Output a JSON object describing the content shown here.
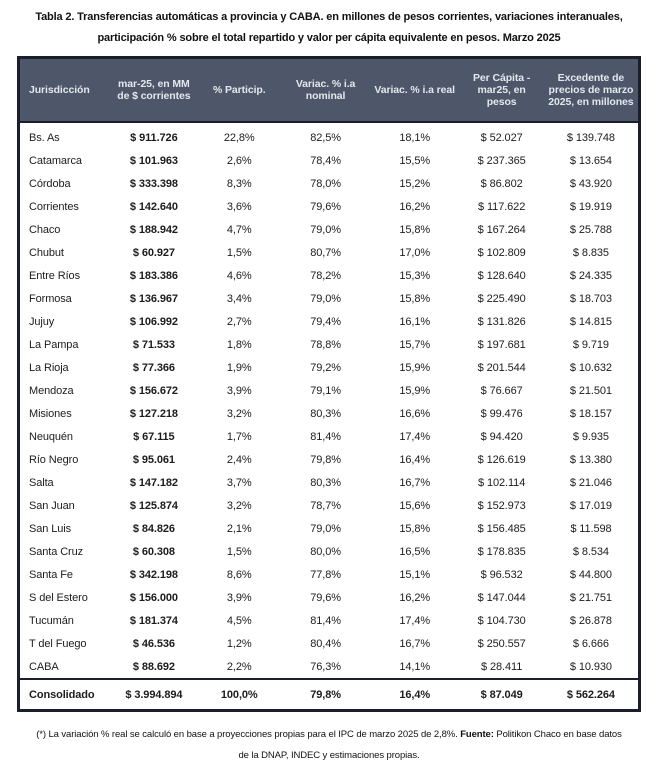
{
  "title": {
    "line1": "Tabla 2. Transferencias automáticas a provincia y CABA. en millones de pesos corrientes, variaciones interanuales,",
    "line2": "participación % sobre el total repartido y valor per cápita equivalente en pesos. Marzo 2025"
  },
  "table": {
    "headers": [
      "Jurisdicción",
      "mar-25, en MM de $ corrientes",
      "% Particip.",
      "Variac. % i.a nominal",
      "Variac. % i.a real",
      "Per Cápita - mar25, en pesos",
      "Excedente de precios de marzo 2025, en millones"
    ],
    "rows": [
      [
        "Bs. As",
        "$ 911.726",
        "22,8%",
        "82,5%",
        "18,1%",
        "$ 52.027",
        "$ 139.748"
      ],
      [
        "Catamarca",
        "$ 101.963",
        "2,6%",
        "78,4%",
        "15,5%",
        "$ 237.365",
        "$ 13.654"
      ],
      [
        "Córdoba",
        "$ 333.398",
        "8,3%",
        "78,0%",
        "15,2%",
        "$ 86.802",
        "$ 43.920"
      ],
      [
        "Corrientes",
        "$ 142.640",
        "3,6%",
        "79,6%",
        "16,2%",
        "$ 117.622",
        "$ 19.919"
      ],
      [
        "Chaco",
        "$ 188.942",
        "4,7%",
        "79,0%",
        "15,8%",
        "$ 167.264",
        "$ 25.788"
      ],
      [
        "Chubut",
        "$ 60.927",
        "1,5%",
        "80,7%",
        "17,0%",
        "$ 102.809",
        "$ 8.835"
      ],
      [
        "Entre Ríos",
        "$ 183.386",
        "4,6%",
        "78,2%",
        "15,3%",
        "$ 128.640",
        "$ 24.335"
      ],
      [
        "Formosa",
        "$ 136.967",
        "3,4%",
        "79,0%",
        "15,8%",
        "$ 225.490",
        "$ 18.703"
      ],
      [
        "Jujuy",
        "$ 106.992",
        "2,7%",
        "79,4%",
        "16,1%",
        "$ 131.826",
        "$ 14.815"
      ],
      [
        "La Pampa",
        "$ 71.533",
        "1,8%",
        "78,8%",
        "15,7%",
        "$ 197.681",
        "$ 9.719"
      ],
      [
        "La Rioja",
        "$ 77.366",
        "1,9%",
        "79,2%",
        "15,9%",
        "$ 201.544",
        "$ 10.632"
      ],
      [
        "Mendoza",
        "$ 156.672",
        "3,9%",
        "79,1%",
        "15,9%",
        "$ 76.667",
        "$ 21.501"
      ],
      [
        "Misiones",
        "$ 127.218",
        "3,2%",
        "80,3%",
        "16,6%",
        "$ 99.476",
        "$ 18.157"
      ],
      [
        "Neuquén",
        "$ 67.115",
        "1,7%",
        "81,4%",
        "17,4%",
        "$ 94.420",
        "$ 9.935"
      ],
      [
        "Río Negro",
        "$ 95.061",
        "2,4%",
        "79,8%",
        "16,4%",
        "$ 126.619",
        "$ 13.380"
      ],
      [
        "Salta",
        "$ 147.182",
        "3,7%",
        "80,3%",
        "16,7%",
        "$ 102.114",
        "$ 21.046"
      ],
      [
        "San Juan",
        "$ 125.874",
        "3,2%",
        "78,7%",
        "15,6%",
        "$ 152.973",
        "$ 17.019"
      ],
      [
        "San Luis",
        "$ 84.826",
        "2,1%",
        "79,0%",
        "15,8%",
        "$ 156.485",
        "$ 11.598"
      ],
      [
        "Santa Cruz",
        "$ 60.308",
        "1,5%",
        "80,0%",
        "16,5%",
        "$ 178.835",
        "$ 8.534"
      ],
      [
        "Santa Fe",
        "$ 342.198",
        "8,6%",
        "77,8%",
        "15,1%",
        "$ 96.532",
        "$ 44.800"
      ],
      [
        "S del Estero",
        "$ 156.000",
        "3,9%",
        "79,6%",
        "16,2%",
        "$ 147.044",
        "$ 21.751"
      ],
      [
        "Tucumán",
        "$ 181.374",
        "4,5%",
        "81,4%",
        "17,4%",
        "$ 104.730",
        "$ 26.878"
      ],
      [
        "T del Fuego",
        "$ 46.536",
        "1,2%",
        "80,4%",
        "16,7%",
        "$ 250.557",
        "$ 6.666"
      ],
      [
        "CABA",
        "$ 88.692",
        "2,2%",
        "76,3%",
        "14,1%",
        "$ 28.411",
        "$ 10.930"
      ]
    ],
    "total_row": [
      "Consolidado",
      "$ 3.994.894",
      "100,0%",
      "79,8%",
      "16,4%",
      "$ 87.049",
      "$ 562.264"
    ]
  },
  "footer": {
    "line1_part1": "(*) La variación % real se calculó en base a proyecciones propias para el IPC de marzo 2025 de 2,8%. ",
    "line1_fuente": "Fuente:",
    "line1_part2": " Politikon Chaco en base datos",
    "line2": "de la DNAP, INDEC y estimaciones propias."
  },
  "colors": {
    "header_bg": "#4d5769",
    "header_text": "#e4e7ed",
    "border": "#1a1f2b",
    "body_text": "#1c1c1c"
  }
}
